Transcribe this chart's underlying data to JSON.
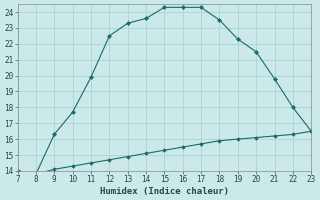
{
  "title": "",
  "xlabel": "Humidex (Indice chaleur)",
  "ylabel": "",
  "background_color": "#cce9e9",
  "grid_color": "#aad4d4",
  "line_color": "#1a6b6b",
  "marker_color": "#1a6b6b",
  "xlim": [
    7,
    23
  ],
  "ylim": [
    14,
    24.5
  ],
  "xticks": [
    7,
    8,
    9,
    10,
    11,
    12,
    13,
    14,
    15,
    16,
    17,
    18,
    19,
    20,
    21,
    22,
    23
  ],
  "yticks": [
    14,
    15,
    16,
    17,
    18,
    19,
    20,
    21,
    22,
    23,
    24
  ],
  "line1_x": [
    7,
    8,
    9,
    10,
    11,
    12,
    13,
    14,
    15,
    16,
    17,
    18,
    19,
    20,
    21,
    22,
    23
  ],
  "line1_y": [
    14.0,
    13.8,
    16.3,
    17.7,
    19.9,
    22.5,
    23.3,
    23.6,
    24.3,
    24.3,
    24.3,
    23.5,
    22.3,
    21.5,
    19.8,
    18.0,
    16.5
  ],
  "line2_x": [
    7,
    8,
    9,
    10,
    11,
    12,
    13,
    14,
    15,
    16,
    17,
    18,
    19,
    20,
    21,
    22,
    23
  ],
  "line2_y": [
    14.0,
    13.8,
    14.1,
    14.3,
    14.5,
    14.7,
    14.9,
    15.1,
    15.3,
    15.5,
    15.7,
    15.9,
    16.0,
    16.1,
    16.2,
    16.3,
    16.5
  ]
}
